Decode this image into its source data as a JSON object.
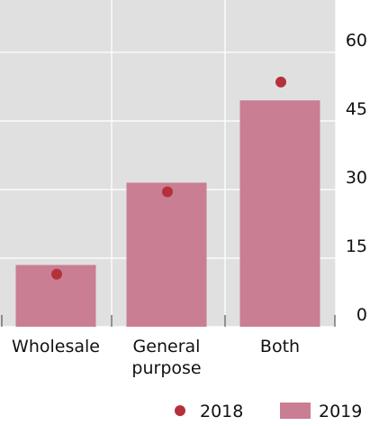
{
  "chart_data": {
    "type": "bar",
    "title": "",
    "xlabel": "",
    "ylabel": "",
    "categories": [
      [
        "Wholesale"
      ],
      [
        "General",
        "purpose"
      ],
      [
        "Both"
      ]
    ],
    "ylim": [
      0,
      70
    ],
    "yticks": [
      0,
      15,
      30,
      45,
      60
    ],
    "y_axis_side": "right",
    "grid": true,
    "series": [
      {
        "name": "2019",
        "type": "bar",
        "color": "#c97e93",
        "values": [
          13.5,
          31.5,
          49.5
        ]
      },
      {
        "name": "2018",
        "type": "dot",
        "color": "#b5313a",
        "values": [
          11.5,
          29.5,
          53.5
        ]
      }
    ],
    "legend": {
      "position": "bottom-right",
      "items": [
        {
          "label": "2018",
          "marker": "dot",
          "color": "#b5313a"
        },
        {
          "label": "2019",
          "marker": "bar",
          "color": "#c97e93"
        }
      ]
    },
    "colors": {
      "plot_background": "#e0e0e0",
      "gridline": "#ffffff"
    }
  }
}
